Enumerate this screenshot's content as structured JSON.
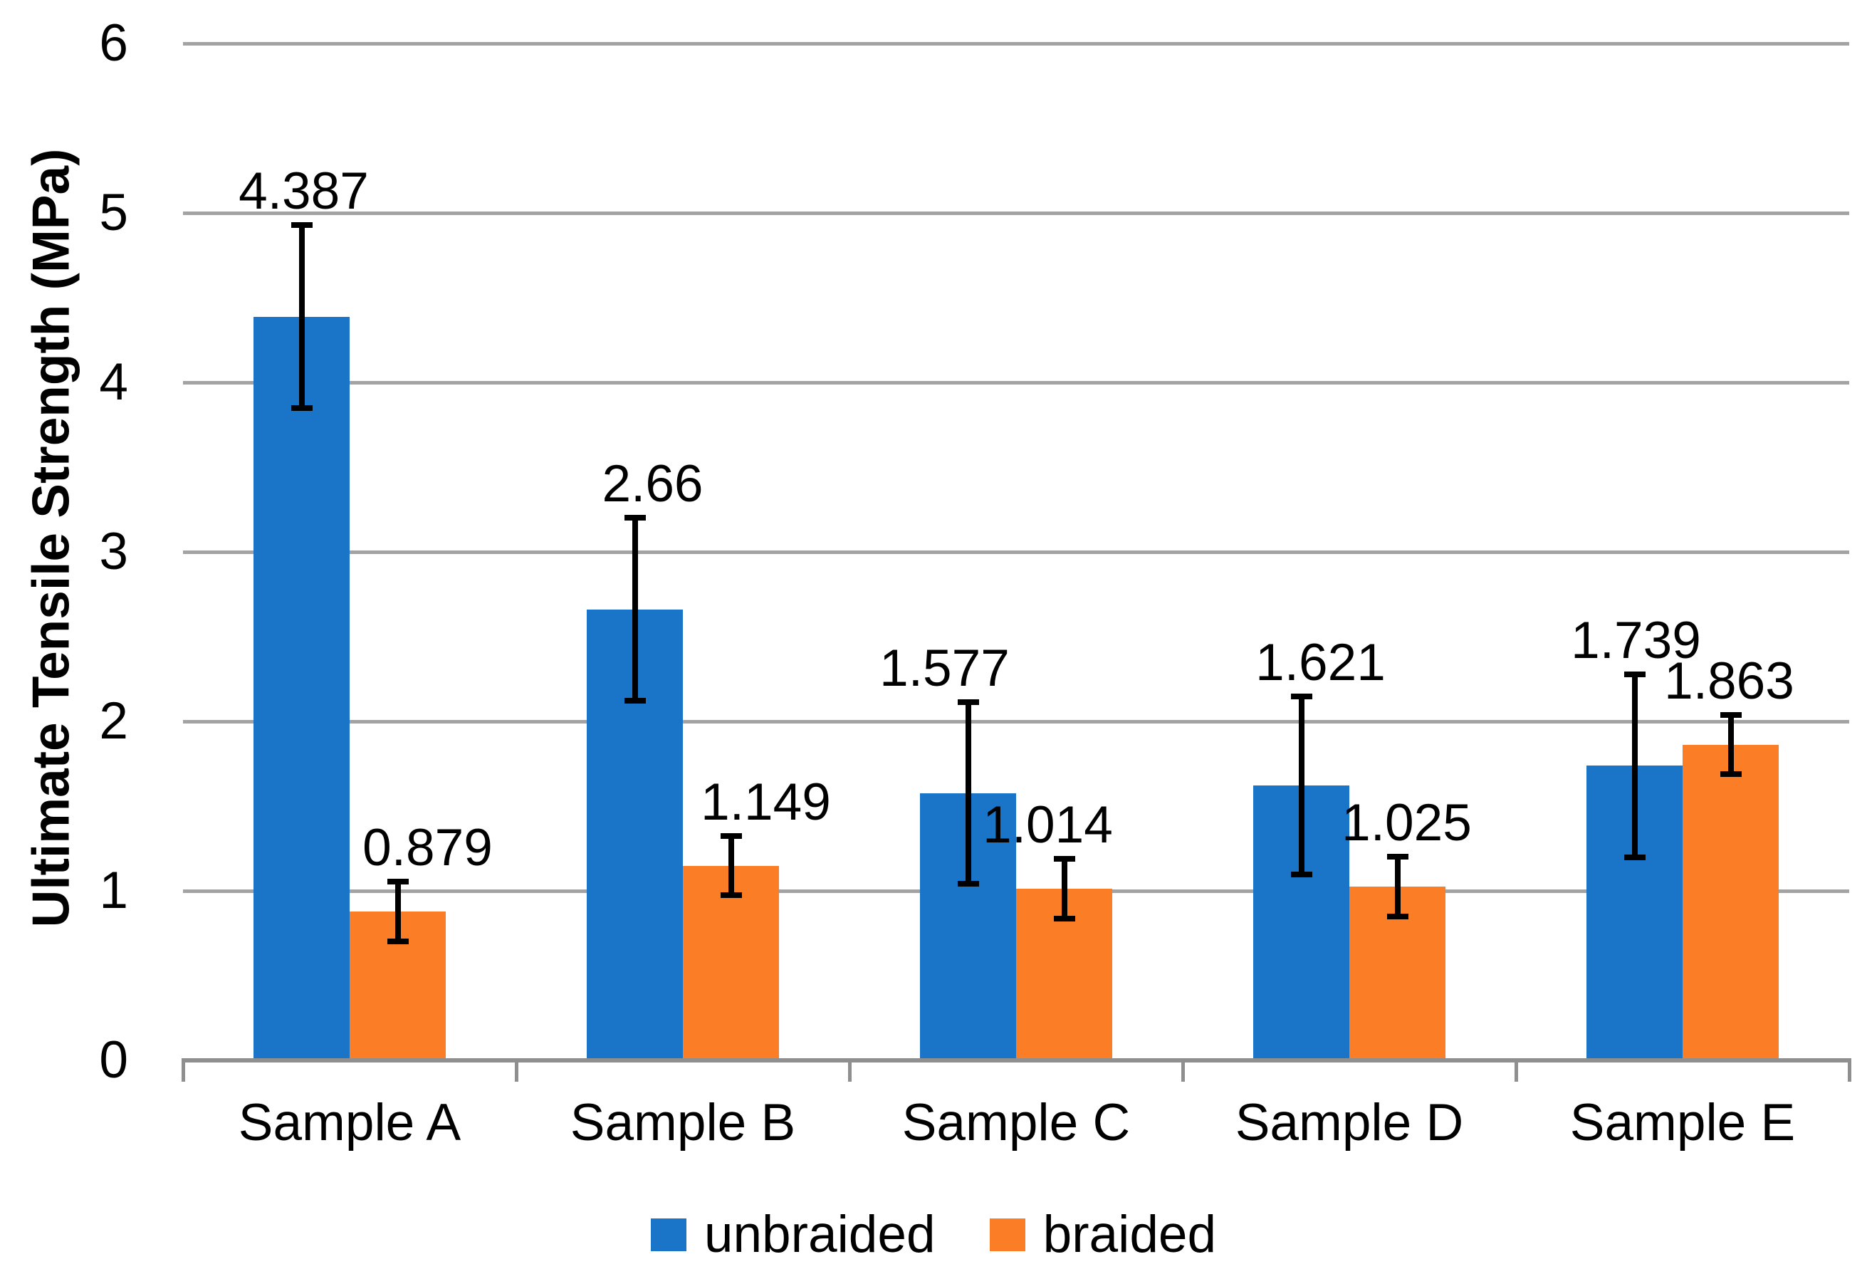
{
  "figure": {
    "background_color": "#ffffff",
    "text_color": "#000000"
  },
  "chart_data": {
    "type": "bar",
    "title": "",
    "xlabel": "",
    "ylabel": "Ultimate Tensile Strength (MPa)",
    "ylim": [
      0,
      6
    ],
    "y_tick_step": 1,
    "y_tick_labels": [
      "0",
      "1",
      "2",
      "3",
      "4",
      "5",
      "6"
    ],
    "grid": true,
    "gridline_color": "#A3A3A3",
    "axis_line_color": "#8F8F8F",
    "error_bar_color": "#000000",
    "legend_position": "bottom",
    "categories": [
      "Sample A",
      "Sample B",
      "Sample C",
      "Sample D",
      "Sample E"
    ],
    "series": [
      {
        "name": "unbraided",
        "color": "#1A74C8",
        "values": [
          4.387,
          2.66,
          1.577,
          1.621,
          1.739
        ],
        "errors": [
          0.54,
          0.54,
          0.535,
          0.525,
          0.54
        ],
        "data_labels": [
          "4.387",
          "2.66",
          "1.577",
          "1.621",
          "1.739"
        ]
      },
      {
        "name": "braided",
        "color": "#FB7E27",
        "values": [
          0.879,
          1.149,
          1.014,
          1.025,
          1.863
        ],
        "errors": [
          0.177,
          0.175,
          0.176,
          0.175,
          0.173
        ],
        "data_labels": [
          "0.879",
          "1.149",
          "1.014",
          "1.025",
          "1.863"
        ]
      }
    ],
    "legend": [
      {
        "label": "unbraided",
        "color": "#1A74C8"
      },
      {
        "label": "braided",
        "color": "#FB7E27"
      }
    ]
  }
}
